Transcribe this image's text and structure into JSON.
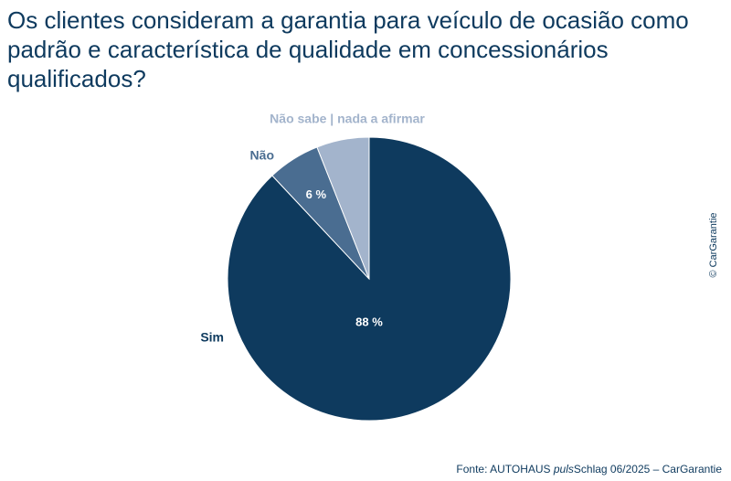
{
  "title": "Os clientes consideram a garantia para veículo de ocasião como padrão e característica de qualidade em concessionários qualificados?",
  "copyright": "© CarGarantie",
  "source": {
    "prefix": "Fonte: AUTOHAUS ",
    "italic": "puls",
    "suffix": "Schlag 06/2025 – CarGarantie"
  },
  "chart_data": {
    "type": "pie",
    "slices": [
      {
        "label": "Sim",
        "value": 88,
        "value_label": "88 %",
        "color": "#0e3a5e"
      },
      {
        "label": "Não",
        "value": 6,
        "value_label": "6 %",
        "color": "#4a6d91"
      },
      {
        "label": "Não sabe | nada a afirmar",
        "value": 6,
        "value_label": "",
        "color": "#a3b4cc"
      }
    ]
  }
}
